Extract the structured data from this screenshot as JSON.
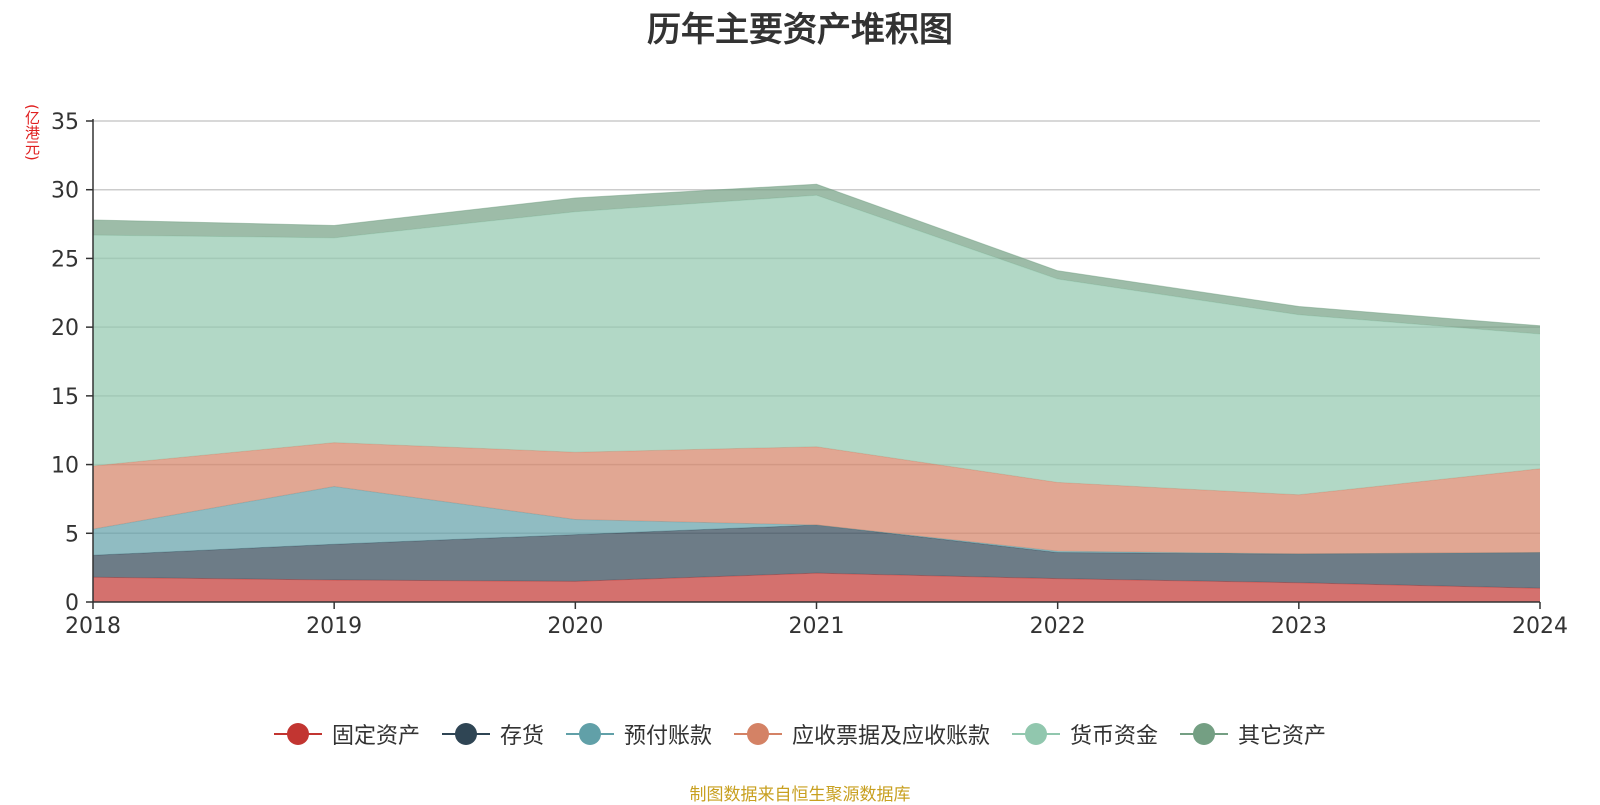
{
  "chart_data": {
    "type": "area",
    "stacked": true,
    "title": "历年主要资产堆积图",
    "unit_label": "(亿港元)",
    "x": [
      "2018",
      "2019",
      "2020",
      "2021",
      "2022",
      "2023",
      "2024"
    ],
    "ylim": [
      0,
      35
    ],
    "yticks": [
      "0",
      "5",
      "10",
      "15",
      "20",
      "25",
      "30",
      "35"
    ],
    "grid": true,
    "legend_position": "bottom",
    "series": [
      {
        "name": "固定资产",
        "color": "#c23531",
        "values": [
          1.8,
          1.6,
          1.5,
          2.1,
          1.7,
          1.4,
          1.0
        ]
      },
      {
        "name": "存货",
        "color": "#2f4554",
        "values": [
          1.6,
          2.6,
          3.4,
          3.5,
          1.9,
          2.1,
          2.6
        ]
      },
      {
        "name": "预付账款",
        "color": "#61a0a8",
        "values": [
          1.9,
          4.2,
          1.1,
          0.0,
          0.1,
          0.0,
          0.0
        ]
      },
      {
        "name": "应收票据及应收账款",
        "color": "#d48265",
        "values": [
          4.6,
          3.2,
          4.9,
          5.7,
          5.0,
          4.3,
          6.1
        ]
      },
      {
        "name": "货币资金",
        "color": "#91c7ae",
        "values": [
          16.8,
          14.9,
          17.5,
          18.3,
          14.8,
          13.1,
          9.8
        ]
      },
      {
        "name": "其它资产",
        "color": "#749f83",
        "values": [
          1.1,
          0.9,
          1.0,
          0.8,
          0.6,
          0.6,
          0.6
        ]
      }
    ]
  },
  "source_note": "制图数据来自恒生聚源数据库"
}
